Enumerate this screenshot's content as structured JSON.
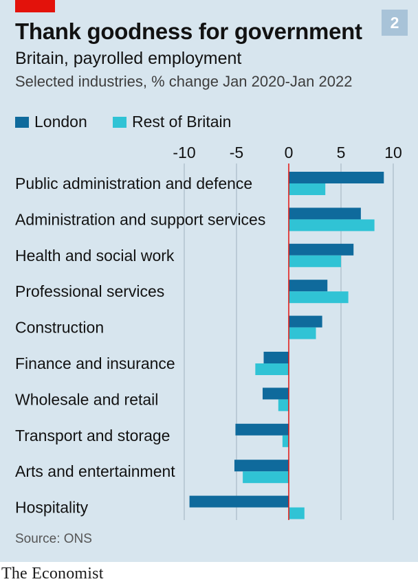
{
  "header": {
    "title": "Thank goodness for government",
    "subtitle": "Britain, payrolled employment",
    "subsubtitle": "Selected industries, % change Jan 2020-Jan 2022",
    "chart_number": "2"
  },
  "legend": {
    "london_label": "London",
    "rest_label": "Rest of Britain"
  },
  "colors": {
    "london": "#0f6a9c",
    "rest": "#30c3d5",
    "zero_line": "#e3120b",
    "grid": "#9fb1be",
    "background": "#d7e5ee"
  },
  "source": "Source: ONS",
  "brand": "The Economist",
  "chart_data": {
    "type": "bar",
    "orientation": "horizontal",
    "title": "Thank goodness for government",
    "xlim": [
      -10,
      10
    ],
    "ticks": [
      -10,
      -5,
      0,
      5,
      10
    ],
    "tick_labels": [
      "-10",
      "-5",
      "0",
      "5",
      "10"
    ],
    "grid": true,
    "legend_position": "top-left",
    "categories": [
      "Public administration and defence",
      "Administration and support services",
      "Health and social work",
      "Professional services",
      "Construction",
      "Finance and insurance",
      "Wholesale and retail",
      "Transport and storage",
      "Arts and entertainment",
      "Hospitality"
    ],
    "series": [
      {
        "name": "London",
        "values": [
          9.1,
          6.9,
          6.2,
          3.7,
          3.2,
          -2.4,
          -2.5,
          -5.1,
          -5.2,
          -9.5
        ]
      },
      {
        "name": "Rest of Britain",
        "values": [
          3.5,
          8.2,
          5.0,
          5.7,
          2.6,
          -3.2,
          -1.0,
          -0.6,
          -4.4,
          1.5
        ]
      }
    ]
  }
}
